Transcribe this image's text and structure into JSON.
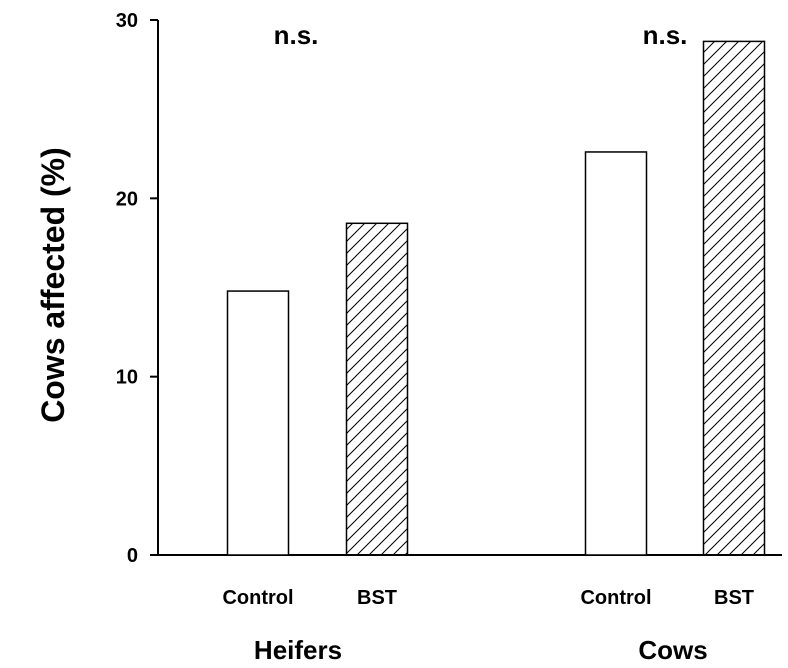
{
  "chart_data": {
    "type": "bar",
    "ylabel": "Cows affected (%)",
    "ylim": [
      0,
      30
    ],
    "yticks": [
      "0",
      "10",
      "20",
      "30"
    ],
    "grid": false,
    "groups": [
      {
        "name": "Heifers",
        "significance": "n.s.",
        "bars": [
          {
            "label": "Control",
            "value": 14.8,
            "pattern": "open"
          },
          {
            "label": "BST",
            "value": 18.6,
            "pattern": "hatched"
          }
        ]
      },
      {
        "name": "Cows",
        "significance": "n.s.",
        "bars": [
          {
            "label": "Control",
            "value": 22.6,
            "pattern": "open"
          },
          {
            "label": "BST",
            "value": 28.8,
            "pattern": "hatched"
          }
        ]
      }
    ],
    "colors": {
      "bar_fill": "#ffffff",
      "bar_stroke": "#000000",
      "hatch": "#000000",
      "axis": "#000000"
    }
  }
}
